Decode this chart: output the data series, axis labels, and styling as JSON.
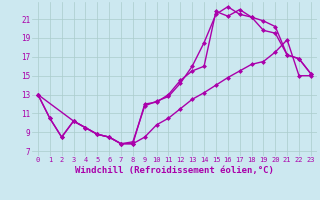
{
  "background_color": "#cce8f0",
  "grid_color": "#aacccc",
  "line_color": "#aa00aa",
  "marker": "D",
  "markersize": 2.5,
  "linewidth": 1.0,
  "xlabel": "Windchill (Refroidissement éolien,°C)",
  "xlabel_fontsize": 6.5,
  "ylabel_ticks": [
    7,
    9,
    11,
    13,
    15,
    17,
    19,
    21
  ],
  "xlim": [
    -0.5,
    23.5
  ],
  "ylim": [
    6.5,
    22.8
  ],
  "xtick_labels": [
    "0",
    "1",
    "2",
    "3",
    "4",
    "5",
    "6",
    "7",
    "8",
    "9",
    "10",
    "11",
    "12",
    "13",
    "14",
    "15",
    "16",
    "17",
    "18",
    "19",
    "20",
    "21",
    "22",
    "23"
  ],
  "line1_x": [
    0,
    1,
    2,
    3,
    4,
    5,
    6,
    7,
    8,
    9,
    10,
    11,
    12,
    13,
    14,
    15,
    16,
    17,
    18,
    19,
    20,
    21,
    22,
    23
  ],
  "line1_y": [
    13.0,
    10.5,
    8.5,
    10.2,
    9.5,
    8.8,
    8.5,
    7.8,
    8.0,
    11.8,
    12.3,
    12.8,
    14.2,
    16.0,
    18.5,
    21.5,
    22.3,
    21.5,
    21.2,
    20.8,
    20.2,
    17.2,
    16.8,
    15.2
  ],
  "line2_x": [
    0,
    1,
    2,
    3,
    4,
    5,
    6,
    7,
    8,
    9,
    10,
    11,
    12,
    13,
    14,
    15,
    16,
    17,
    18,
    19,
    20,
    21,
    22,
    23
  ],
  "line2_y": [
    13.0,
    10.5,
    8.5,
    10.2,
    9.5,
    8.8,
    8.5,
    7.8,
    7.8,
    8.5,
    9.8,
    10.5,
    11.5,
    12.5,
    13.2,
    14.0,
    14.8,
    15.5,
    16.2,
    16.5,
    17.5,
    18.8,
    15.0,
    15.0
  ],
  "line3_x": [
    0,
    3,
    4,
    5,
    6,
    7,
    8,
    9,
    10,
    11,
    12,
    13,
    14,
    15,
    16,
    17,
    18,
    19,
    20,
    21,
    22,
    23
  ],
  "line3_y": [
    13.0,
    10.2,
    9.5,
    8.8,
    8.5,
    7.8,
    7.8,
    12.0,
    12.2,
    13.0,
    14.5,
    15.5,
    16.0,
    21.8,
    21.3,
    22.0,
    21.2,
    19.8,
    19.5,
    17.2,
    16.8,
    15.2
  ]
}
